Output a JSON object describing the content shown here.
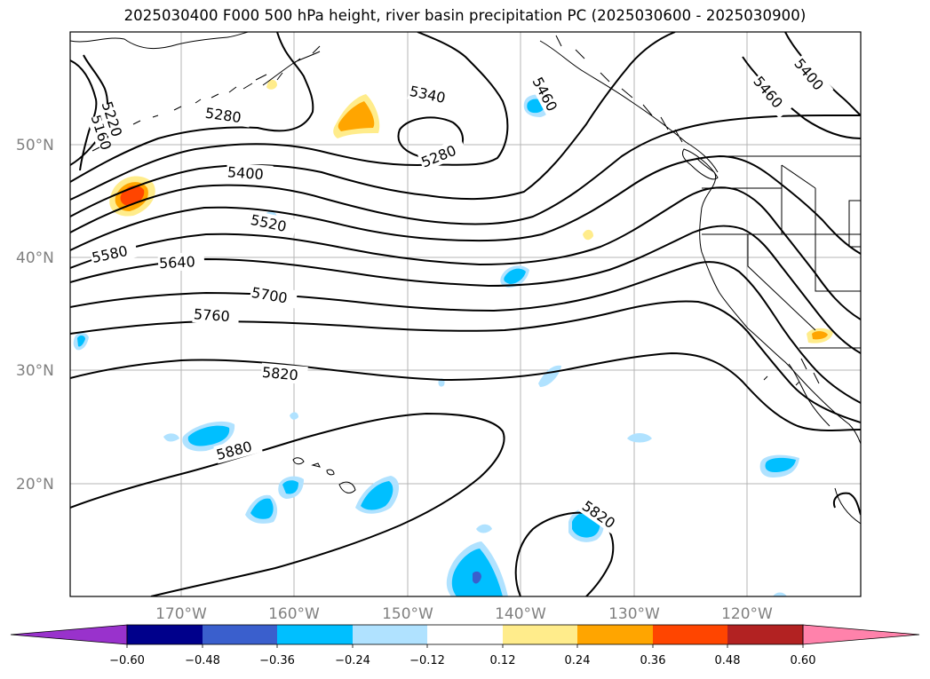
{
  "title": "2025030400 F000 500 hPa height, river basin precipitation PC (2025030600 - 2025030900)",
  "latitude_labels": [
    "50°N",
    "40°N",
    "30°N",
    "20°N"
  ],
  "longitude_labels": [
    "170°W",
    "160°W",
    "150°W",
    "140°W",
    "130°W",
    "120°W"
  ],
  "contour_labels": {
    "c5160": "5160",
    "c5220": "5220",
    "c5280a": "5280",
    "c5340": "5340",
    "c5280b": "5280",
    "c5460a": "5460",
    "c5460b": "5460",
    "c5400a": "5400",
    "c5400b": "5400",
    "c5520": "5520",
    "c5580": "5580",
    "c5640": "5640",
    "c5700": "5700",
    "c5760": "5760",
    "c5820a": "5820",
    "c5880": "5880",
    "c5820b": "5820"
  },
  "colorbar": {
    "ticks": [
      "−0.60",
      "−0.48",
      "−0.36",
      "−0.24",
      "−0.12",
      "0.12",
      "0.24",
      "0.36",
      "0.48",
      "0.60"
    ],
    "colors": [
      "#9932cc",
      "#00008b",
      "#3a5fcd",
      "#00bfff",
      "#b0e2ff",
      "#ffffff",
      "#ffec8b",
      "#ffa500",
      "#ff4500",
      "#b22222",
      "#ff82ab"
    ]
  }
}
